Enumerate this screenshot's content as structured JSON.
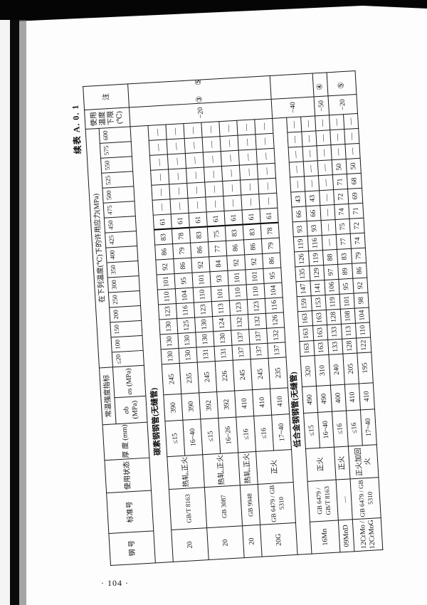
{
  "title": "续表 A. 0. 1",
  "page_number": "· 104 ·",
  "header": {
    "grade": "钢 号",
    "standard": "标准号",
    "condition": "使用状态",
    "thickness": "厚 度 (mm)",
    "room_temp_group": "常温强度指标",
    "sigma_b": "σb (MPa)",
    "sigma_s": "σs (MPa)",
    "stress_group": "在下列温度(℃)下的许用应力(MPa)",
    "temperatures": [
      "≤20",
      "100",
      "150",
      "200",
      "250",
      "300",
      "350",
      "400",
      "425",
      "450",
      "475",
      "500",
      "525",
      "550",
      "575",
      "600"
    ],
    "min_temp": "使用温度下限(℃)",
    "notes": "注"
  },
  "sections": [
    {
      "label": "碳素钢钢管(无缝管)",
      "row_class": "rc",
      "blocks": [
        {
          "min_temp": "−20",
          "note": "③ ⑤",
          "rows": 7
        }
      ],
      "groups": [
        {
          "grade": "20",
          "standard": "GB/T 8163",
          "condition": "热轧,正火",
          "rows": [
            {
              "thickness": "≤15",
              "sb": "390",
              "ss": "245",
              "stress": [
                "130",
                "130",
                "130",
                "123",
                "110",
                "101",
                "92",
                "86",
                "83",
                "61",
                "—",
                "—",
                "—",
                "—",
                "—",
                "—"
              ]
            },
            {
              "thickness": "16~40",
              "sb": "390",
              "ss": "235",
              "stress": [
                "130",
                "130",
                "125",
                "116",
                "104",
                "95",
                "86",
                "79",
                "78",
                "61",
                "—",
                "—",
                "—",
                "—",
                "—",
                "—"
              ]
            }
          ]
        },
        {
          "grade": "20",
          "standard": "GB 3087",
          "condition": "热轧,正火",
          "rows": [
            {
              "thickness": "≤15",
              "sb": "392",
              "ss": "245",
              "stress": [
                "131",
                "130",
                "130",
                "123",
                "110",
                "101",
                "92",
                "86",
                "83",
                "61",
                "—",
                "—",
                "—",
                "—",
                "—",
                "—"
              ]
            },
            {
              "thickness": "16~26",
              "sb": "392",
              "ss": "226",
              "stress": [
                "131",
                "130",
                "124",
                "113",
                "101",
                "93",
                "84",
                "77",
                "75",
                "61",
                "—",
                "—",
                "—",
                "—",
                "—",
                "—"
              ]
            }
          ]
        },
        {
          "grade": "20",
          "standard": "GB 9948",
          "condition": "热轧,正火",
          "rows": [
            {
              "thickness": "≤16",
              "sb": "410",
              "ss": "245",
              "stress": [
                "137",
                "137",
                "132",
                "123",
                "110",
                "101",
                "92",
                "86",
                "83",
                "61",
                "—",
                "—",
                "—",
                "—",
                "—",
                "—"
              ]
            }
          ]
        },
        {
          "grade": "20G",
          "standard": "GB 6479 / GB 5310",
          "condition": "正火",
          "rows": [
            {
              "thickness": "≤16",
              "sb": "410",
              "ss": "245",
              "stress": [
                "137",
                "137",
                "132",
                "123",
                "110",
                "101",
                "92",
                "86",
                "83",
                "61",
                "—",
                "—",
                "—",
                "—",
                "—",
                "—"
              ]
            },
            {
              "thickness": "17~40",
              "sb": "410",
              "ss": "235",
              "stress": [
                "137",
                "132",
                "126",
                "116",
                "104",
                "95",
                "86",
                "79",
                "78",
                "61",
                "—",
                "—",
                "—",
                "—",
                "—",
                "—"
              ]
            }
          ]
        }
      ]
    },
    {
      "label": "低合金钢钢管(无缝管)",
      "row_class": "rl",
      "blocks": [
        {
          "min_temp": "−40",
          "note": "",
          "rows": 2
        },
        {
          "min_temp": "−50",
          "note": "④",
          "rows": 1
        },
        {
          "min_temp": "−20",
          "note": "⑤",
          "rows": 2
        }
      ],
      "groups": [
        {
          "grade": "16Mn",
          "standard": "GB 6479 / GB/T 8163",
          "condition": "正火",
          "rows": [
            {
              "thickness": "≤15",
              "sb": "490",
              "ss": "320",
              "stress": [
                "163",
                "163",
                "163",
                "159",
                "147",
                "135",
                "126",
                "119",
                "93",
                "66",
                "43",
                "—",
                "—",
                "—",
                "—",
                "—"
              ]
            },
            {
              "thickness": "16~40",
              "sb": "490",
              "ss": "310",
              "stress": [
                "163",
                "163",
                "163",
                "153",
                "141",
                "129",
                "119",
                "116",
                "93",
                "66",
                "43",
                "—",
                "—",
                "—",
                "—",
                "—"
              ]
            }
          ]
        },
        {
          "grade": "09MnD",
          "standard": "—",
          "condition": "正火",
          "rows": [
            {
              "thickness": "≤16",
              "sb": "400",
              "ss": "240",
              "stress": [
                "133",
                "133",
                "128",
                "119",
                "106",
                "97",
                "88",
                "—",
                "—",
                "—",
                "—",
                "—",
                "—",
                "—",
                "—",
                "—"
              ]
            }
          ]
        },
        {
          "grade": "12CrMo / 12CrMoG",
          "standard": "GB 6479 / GB 5310",
          "condition": "正火加回火",
          "rows": [
            {
              "thickness": "≤16",
              "sb": "410",
              "ss": "205",
              "stress": [
                "128",
                "113",
                "108",
                "101",
                "95",
                "89",
                "83",
                "77",
                "75",
                "74",
                "72",
                "71",
                "50",
                "—",
                "—",
                "—"
              ]
            },
            {
              "thickness": "17~40",
              "sb": "410",
              "ss": "195",
              "stress": [
                "122",
                "110",
                "104",
                "98",
                "92",
                "86",
                "79",
                "74",
                "72",
                "71",
                "69",
                "68",
                "50",
                "—",
                "—",
                "—"
              ]
            }
          ]
        }
      ]
    }
  ]
}
